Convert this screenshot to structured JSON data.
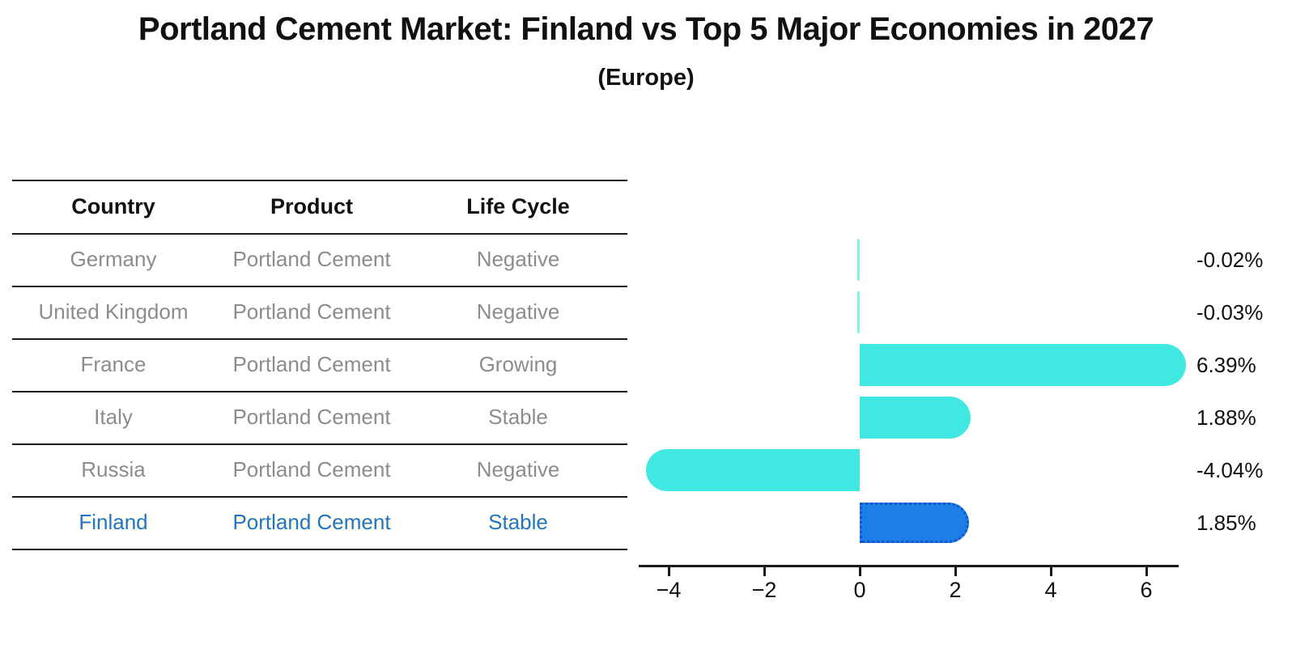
{
  "title": "Portland Cement Market: Finland vs Top 5 Major Economies in 2027",
  "subtitle": "(Europe)",
  "table": {
    "headers": [
      "Country",
      "Product",
      "Life Cycle"
    ],
    "rows": [
      {
        "country": "Germany",
        "product": "Portland Cement",
        "life_cycle": "Negative",
        "highlight": false
      },
      {
        "country": "United Kingdom",
        "product": "Portland Cement",
        "life_cycle": "Negative",
        "highlight": false
      },
      {
        "country": "France",
        "product": "Portland Cement",
        "life_cycle": "Growing",
        "highlight": false
      },
      {
        "country": "Italy",
        "product": "Portland Cement",
        "life_cycle": "Stable",
        "highlight": false
      },
      {
        "country": "Russia",
        "product": "Portland Cement",
        "life_cycle": "Negative",
        "highlight": false
      },
      {
        "country": "Finland",
        "product": "Portland Cement",
        "life_cycle": "Stable",
        "highlight": true
      }
    ]
  },
  "chart_data": {
    "type": "bar",
    "orientation": "horizontal",
    "categories": [
      "Germany",
      "United Kingdom",
      "France",
      "Italy",
      "Russia",
      "Finland"
    ],
    "values": [
      -0.02,
      -0.03,
      6.39,
      1.88,
      -4.04,
      1.85
    ],
    "value_labels": [
      "-0.02%",
      "-0.03%",
      "6.39%",
      "1.88%",
      "-4.04%",
      "1.85%"
    ],
    "highlight_index": 5,
    "x_tick_values": [
      -4,
      -2,
      0,
      2,
      4,
      6
    ],
    "x_tick_labels": [
      "−4",
      "−2",
      "0",
      "2",
      "4",
      "6"
    ],
    "xlim": [
      -4.6,
      6.7
    ],
    "grid": false,
    "legend": "none",
    "value_label_position": "right"
  },
  "colors": {
    "background": "#ffffff",
    "bar": "#41e8e2",
    "highlight_bar": "#1e7ee8",
    "highlight_border": "#0d56cc",
    "highlight_text": "#1f76c9",
    "row_text": "#8c8c8c",
    "header_text": "#111111",
    "axis": "#1a1a1a"
  }
}
